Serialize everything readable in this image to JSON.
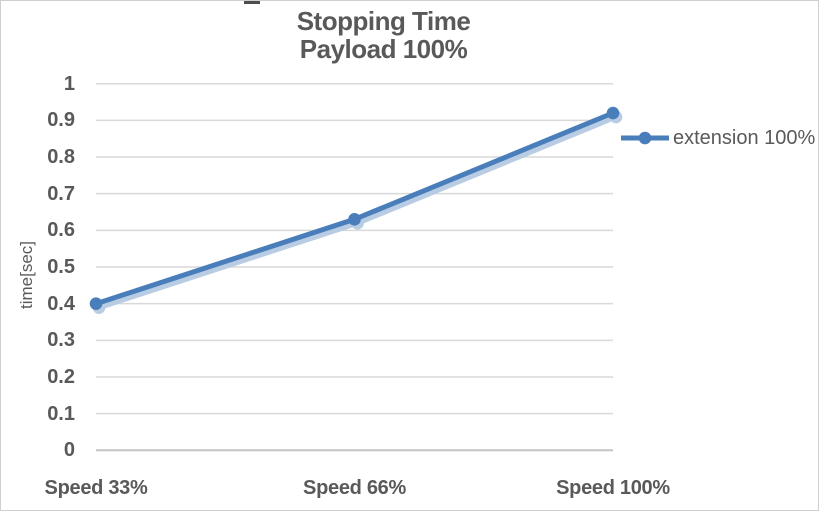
{
  "title": {
    "line1": "Stopping Time",
    "line2": "Payload 100%"
  },
  "colors": {
    "series": "#4A7EBB",
    "series_shadow": "#B8CCE4",
    "gridline": "#D9D9D9",
    "axis_line": "#C3C3C3",
    "text": "#595959",
    "border": "#CFCFCF",
    "background": "#FFFFFF"
  },
  "chart_data": {
    "type": "line",
    "title": "Stopping Time",
    "subtitle": "Payload 100%",
    "categories": [
      "Speed 33%",
      "Speed 66%",
      "Speed 100%"
    ],
    "series": [
      {
        "name": "extension 100%",
        "values": [
          0.4,
          0.63,
          0.92
        ]
      }
    ],
    "xlabel": "",
    "ylabel": "time[sec]",
    "ylim": [
      0,
      1
    ],
    "yticks": [
      "1",
      "0.9",
      "0.8",
      "0.7",
      "0.6",
      "0.5",
      "0.4",
      "0.3",
      "0.2",
      "0.1",
      "0"
    ],
    "grid": true,
    "legend_position": "right",
    "marker": "circle"
  }
}
